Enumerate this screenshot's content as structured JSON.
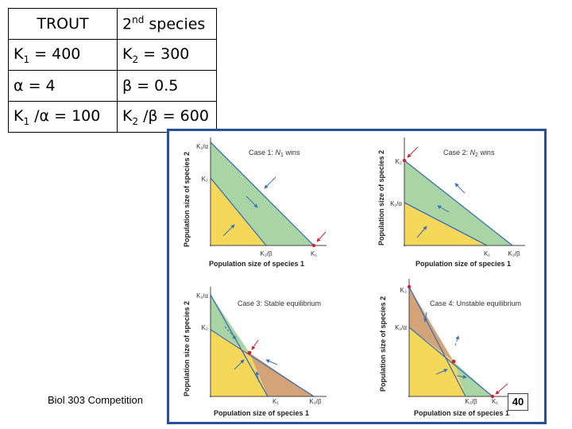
{
  "table": {
    "header": {
      "col1": "TROUT",
      "col2_base": "2",
      "col2_sup": "nd",
      "col2_rest": " species"
    },
    "row1": {
      "col1_pre": "K",
      "col1_sub": "1",
      "col1_post": " = 400",
      "col2_pre": "K",
      "col2_sub": "2",
      "col2_post": " = 300"
    },
    "row2": {
      "col1": "α = 4",
      "col2": "β = 0.5"
    },
    "row3": {
      "col1_pre": "K",
      "col1_sub": "1",
      "col1_post": " /α = 100",
      "col2_pre": "K",
      "col2_sub": "2",
      "col2_post": " /β = 600"
    }
  },
  "panels": {
    "case1": {
      "title_pre": "Case 1: ",
      "title_var": "N",
      "title_sub": "1",
      "title_post": " wins",
      "y_tick_top": "K₁/α",
      "y_tick_bottom": "K₂",
      "x_tick_left": "K₂/β",
      "x_tick_right": "K₁"
    },
    "case2": {
      "title_pre": "Case 2: ",
      "title_var": "N",
      "title_sub": "2",
      "title_post": " wins",
      "y_tick_top": "K₂",
      "y_tick_bottom": "K₁/α",
      "x_tick_left": "K₁",
      "x_tick_right": "K₂/β"
    },
    "case3": {
      "title": "Case 3: Stable equilibrium",
      "y_tick_top": "K₁/α",
      "y_tick_bottom": "K₂",
      "x_tick_left": "K₁",
      "x_tick_right": "K₂/β"
    },
    "case4": {
      "title": "Case 4: Unstable equilibrium",
      "y_tick_top": "K₂",
      "y_tick_bottom": "K₁/α",
      "x_tick_left": "K₂/β",
      "x_tick_right": "K₁"
    }
  },
  "axes": {
    "ylabel": "Population size of species 2",
    "xlabel": "Population size of species 1"
  },
  "colors": {
    "green": "#a9d5a5",
    "yellow": "#f5d75a",
    "brown": "#d4a478",
    "line": "#3d6fb6",
    "red": "#d6203a",
    "frame": "#2a4f9a"
  },
  "footer": "Biol 303 Competition",
  "page_number": "40"
}
